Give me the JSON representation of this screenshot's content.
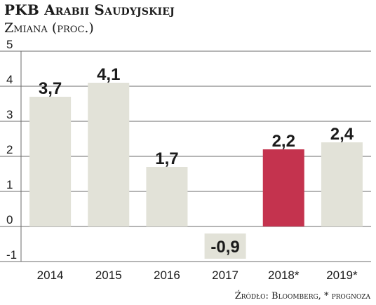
{
  "title": "PKB Arabii Saudyjskiej",
  "subtitle": "Zmiana (proc.)",
  "source": "Źródło: Bloomberg, * prognoza",
  "colors": {
    "bar": "#e2e2d8",
    "highlight": "#c4334e",
    "negative_label_bg": "#e2e2d8",
    "grid": "#6b6b6b"
  },
  "chart_data": {
    "type": "bar",
    "categories": [
      "2014",
      "2015",
      "2016",
      "2017",
      "2018*",
      "2019*"
    ],
    "values": [
      3.7,
      4.1,
      1.7,
      -0.9,
      2.2,
      2.4
    ],
    "value_labels": [
      "3,7",
      "4,1",
      "1,7",
      "-0,9",
      "2,2",
      "2,4"
    ],
    "highlight_index": 4,
    "title": "PKB Arabii Saudyjskiej",
    "xlabel": "",
    "ylabel": "",
    "ylim": [
      -1,
      5
    ],
    "yticks": [
      5,
      4,
      3,
      2,
      1,
      0,
      -1
    ],
    "grid": true
  }
}
